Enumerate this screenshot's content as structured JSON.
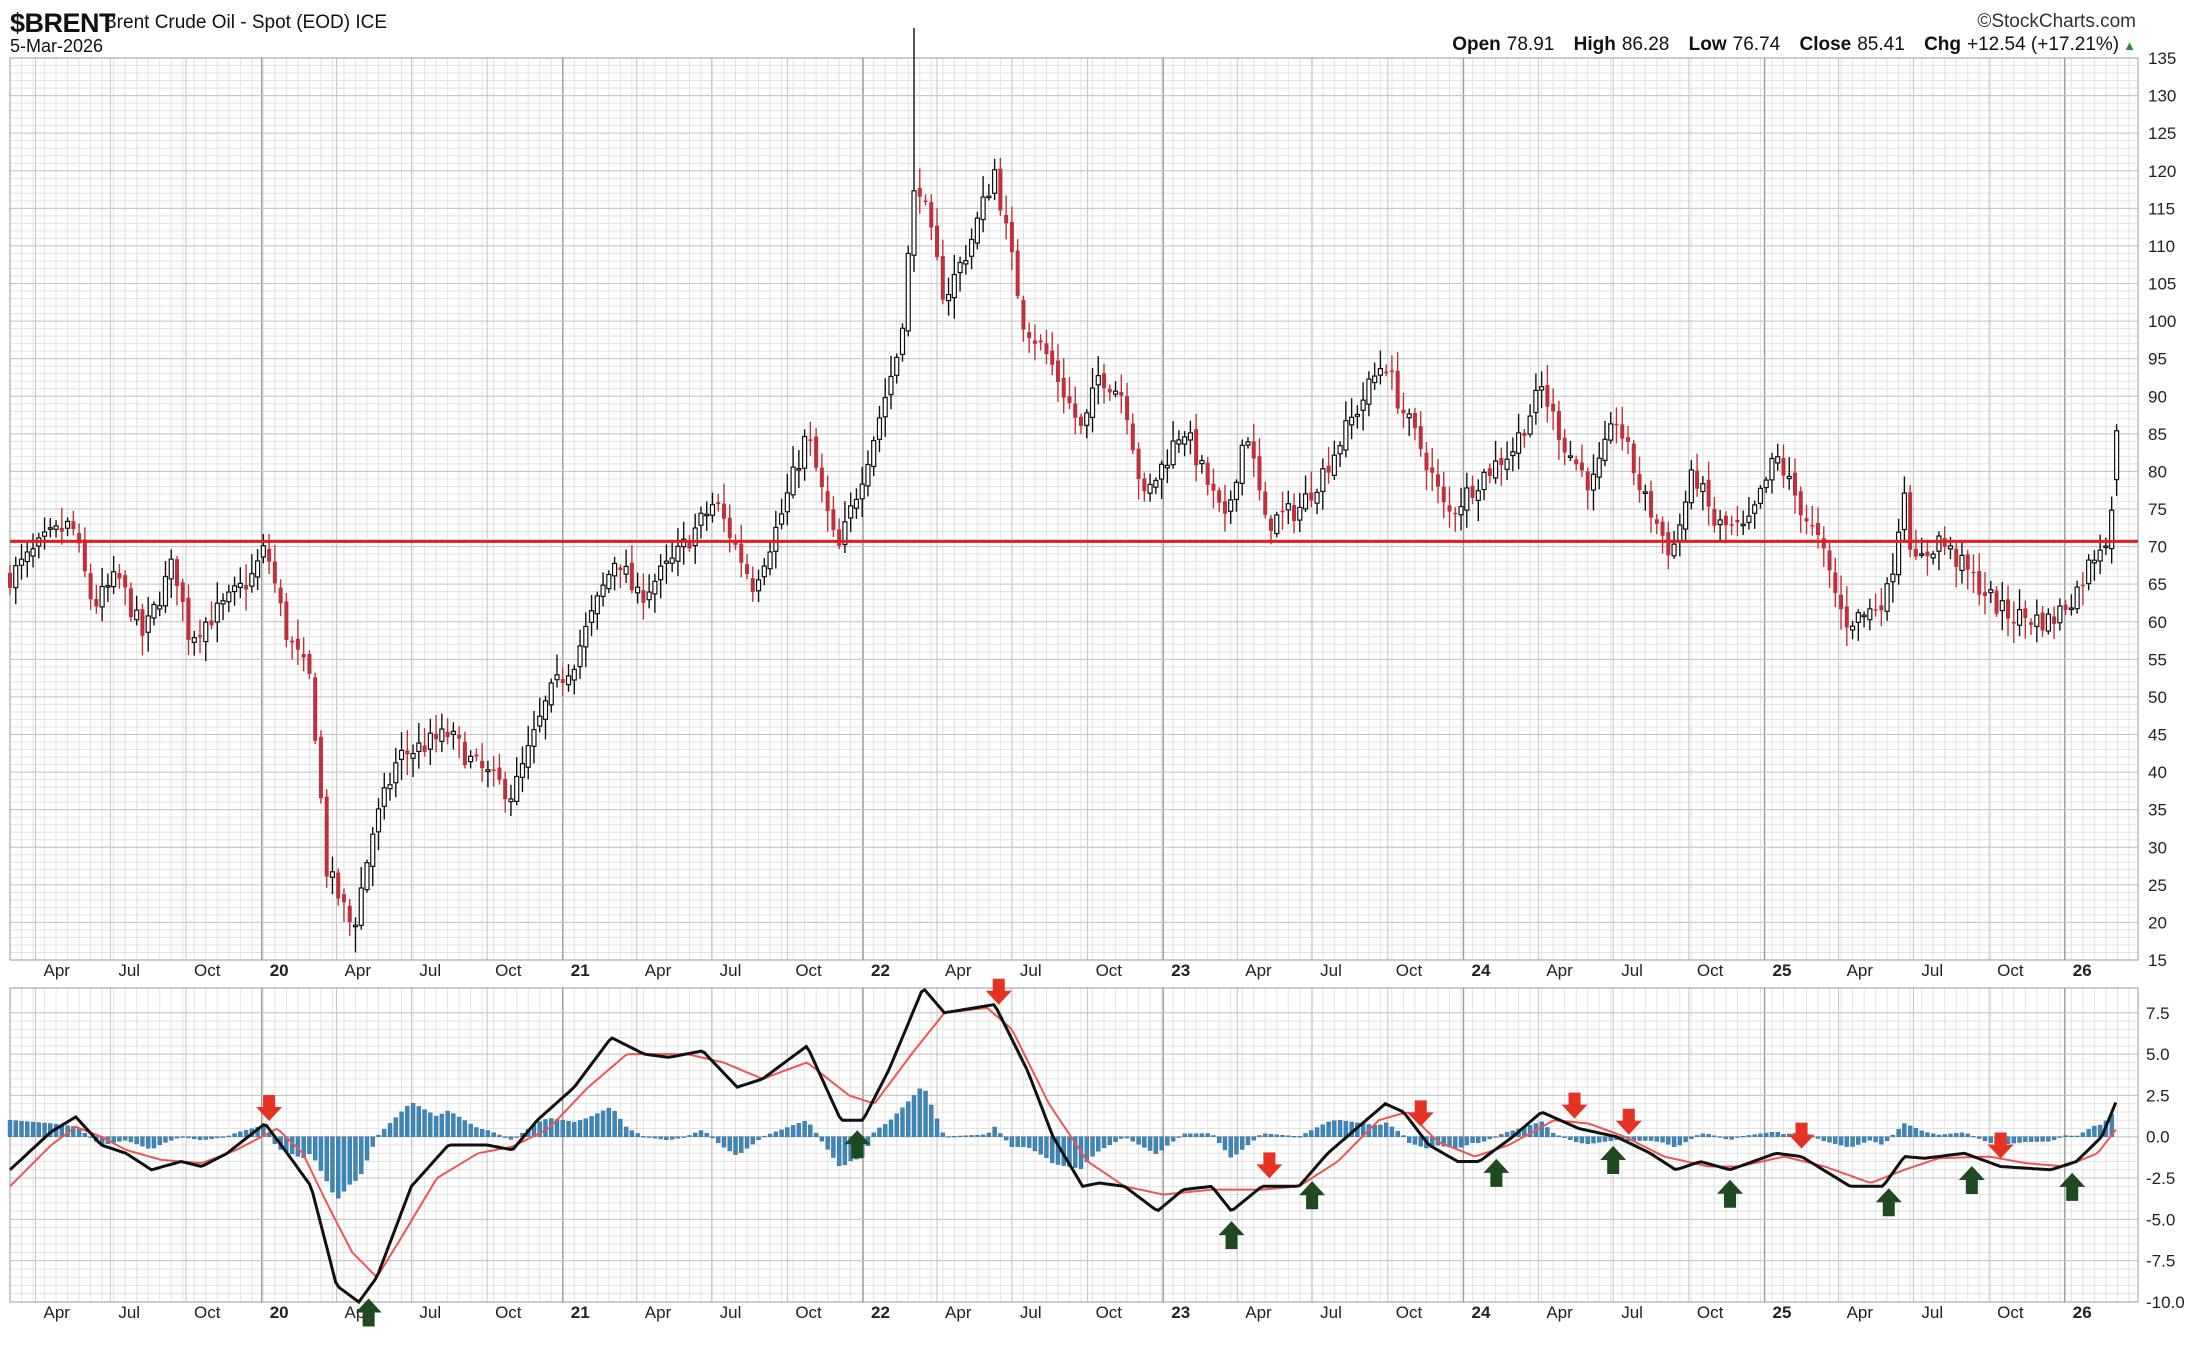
{
  "header": {
    "symbol": "$BRENT",
    "description": "Brent Crude Oil - Spot (EOD)",
    "exchange": "ICE",
    "date": "5-Mar-2026",
    "brand": "©StockCharts.com",
    "open_label": "Open",
    "open": "78.91",
    "high_label": "High",
    "high": "86.28",
    "low_label": "Low",
    "low": "76.74",
    "close_label": "Close",
    "close": "85.41",
    "chg_label": "Chg",
    "chg": "+12.54 (+17.21%)"
  },
  "colors": {
    "up": "#111111",
    "down": "#c0303a",
    "horizontal_line": "#e02020",
    "macd_line": "#111111",
    "signal_line": "#ee5555",
    "histogram": "#3f86b8",
    "sell_arrow": "#e53222",
    "buy_arrow": "#1f4a1f",
    "grid": "#d0d0d0"
  },
  "chart_data": [
    {
      "type": "candlestick",
      "title": "$BRENT Brent Crude Oil - Spot (EOD) ICE",
      "period": "weekly",
      "x_range": [
        "2019-03-01",
        "2026-03-31"
      ],
      "ylim": [
        15,
        135
      ],
      "y_ticks": [
        15,
        20,
        25,
        30,
        35,
        40,
        45,
        50,
        55,
        60,
        65,
        70,
        75,
        80,
        85,
        90,
        95,
        100,
        105,
        110,
        115,
        120,
        125,
        130,
        135
      ],
      "x_ticks": [
        {
          "date": "2019-04-01",
          "label": "Apr"
        },
        {
          "date": "2019-07-01",
          "label": "Jul"
        },
        {
          "date": "2019-10-01",
          "label": "Oct"
        },
        {
          "date": "2020-01-01",
          "label": "20"
        },
        {
          "date": "2020-04-01",
          "label": "Apr"
        },
        {
          "date": "2020-07-01",
          "label": "Jul"
        },
        {
          "date": "2020-10-01",
          "label": "Oct"
        },
        {
          "date": "2021-01-01",
          "label": "21"
        },
        {
          "date": "2021-04-01",
          "label": "Apr"
        },
        {
          "date": "2021-07-01",
          "label": "Jul"
        },
        {
          "date": "2021-10-01",
          "label": "Oct"
        },
        {
          "date": "2022-01-01",
          "label": "22"
        },
        {
          "date": "2022-04-01",
          "label": "Apr"
        },
        {
          "date": "2022-07-01",
          "label": "Jul"
        },
        {
          "date": "2022-10-01",
          "label": "Oct"
        },
        {
          "date": "2023-01-01",
          "label": "23"
        },
        {
          "date": "2023-04-01",
          "label": "Apr"
        },
        {
          "date": "2023-07-01",
          "label": "Jul"
        },
        {
          "date": "2023-10-01",
          "label": "Oct"
        },
        {
          "date": "2024-01-01",
          "label": "24"
        },
        {
          "date": "2024-04-01",
          "label": "Apr"
        },
        {
          "date": "2024-07-01",
          "label": "Jul"
        },
        {
          "date": "2024-10-01",
          "label": "Oct"
        },
        {
          "date": "2025-01-01",
          "label": "25"
        },
        {
          "date": "2025-04-01",
          "label": "Apr"
        },
        {
          "date": "2025-07-01",
          "label": "Jul"
        },
        {
          "date": "2025-10-01",
          "label": "Oct"
        },
        {
          "date": "2026-01-01",
          "label": "26"
        }
      ],
      "horizontal_line": 70.7,
      "price_path": [
        [
          "2019-03-01",
          66
        ],
        [
          "2019-04-15",
          71
        ],
        [
          "2019-05-15",
          73
        ],
        [
          "2019-06-10",
          62
        ],
        [
          "2019-07-10",
          66
        ],
        [
          "2019-08-10",
          58
        ],
        [
          "2019-09-16",
          68
        ],
        [
          "2019-10-05",
          58
        ],
        [
          "2019-11-15",
          62
        ],
        [
          "2019-12-20",
          66
        ],
        [
          "2020-01-06",
          70
        ],
        [
          "2020-02-01",
          58
        ],
        [
          "2020-03-01",
          52
        ],
        [
          "2020-03-20",
          27
        ],
        [
          "2020-04-21",
          19
        ],
        [
          "2020-05-15",
          32
        ],
        [
          "2020-06-15",
          42
        ],
        [
          "2020-08-15",
          45
        ],
        [
          "2020-09-15",
          41
        ],
        [
          "2020-11-01",
          37
        ],
        [
          "2020-12-15",
          50
        ],
        [
          "2021-01-15",
          55
        ],
        [
          "2021-03-08",
          69
        ],
        [
          "2021-04-01",
          63
        ],
        [
          "2021-05-15",
          68
        ],
        [
          "2021-07-05",
          76
        ],
        [
          "2021-08-20",
          65
        ],
        [
          "2021-09-20",
          73
        ],
        [
          "2021-10-25",
          85
        ],
        [
          "2021-12-01",
          69
        ],
        [
          "2022-01-15",
          85
        ],
        [
          "2022-02-15",
          97
        ],
        [
          "2022-03-07",
          120
        ],
        [
          "2022-04-10",
          103
        ],
        [
          "2022-05-10",
          110
        ],
        [
          "2022-06-10",
          120
        ],
        [
          "2022-07-15",
          100
        ],
        [
          "2022-08-15",
          95
        ],
        [
          "2022-09-25",
          85
        ],
        [
          "2022-10-15",
          93
        ],
        [
          "2022-11-15",
          90
        ],
        [
          "2022-12-08",
          76
        ],
        [
          "2023-01-25",
          86
        ],
        [
          "2023-03-17",
          73
        ],
        [
          "2023-04-12",
          86
        ],
        [
          "2023-05-05",
          73
        ],
        [
          "2023-06-15",
          75
        ],
        [
          "2023-07-15",
          80
        ],
        [
          "2023-09-27",
          95
        ],
        [
          "2023-10-15",
          89
        ],
        [
          "2023-11-15",
          82
        ],
        [
          "2023-12-12",
          74
        ],
        [
          "2024-01-20",
          79
        ],
        [
          "2024-03-01",
          83
        ],
        [
          "2024-04-05",
          91
        ],
        [
          "2024-05-05",
          83
        ],
        [
          "2024-06-05",
          78
        ],
        [
          "2024-07-05",
          87
        ],
        [
          "2024-08-05",
          77
        ],
        [
          "2024-09-10",
          69
        ],
        [
          "2024-10-07",
          80
        ],
        [
          "2024-11-01",
          73
        ],
        [
          "2024-12-10",
          72
        ],
        [
          "2025-01-15",
          82
        ],
        [
          "2025-02-15",
          75
        ],
        [
          "2025-03-10",
          70
        ],
        [
          "2025-04-08",
          60
        ],
        [
          "2025-05-05",
          61
        ],
        [
          "2025-06-01",
          64
        ],
        [
          "2025-06-20",
          78
        ],
        [
          "2025-07-01",
          67
        ],
        [
          "2025-08-01",
          71
        ],
        [
          "2025-09-01",
          67
        ],
        [
          "2025-10-20",
          61
        ],
        [
          "2025-12-15",
          60
        ],
        [
          "2026-01-15",
          64
        ],
        [
          "2026-02-10",
          70
        ],
        [
          "2026-02-25",
          72
        ],
        [
          "2026-03-05",
          85.41
        ]
      ],
      "last_candle": {
        "date": "2026-03-05",
        "open": 78.91,
        "high": 86.28,
        "low": 76.74,
        "close": 85.41
      },
      "notable_extremes": [
        {
          "date": "2020-04-21",
          "low": 16
        },
        {
          "date": "2022-03-07",
          "high": 139
        }
      ]
    },
    {
      "type": "macd",
      "ylim": [
        -10,
        9
      ],
      "y_ticks": [
        {
          "value": 7.5,
          "label": "7.5"
        },
        {
          "value": 5,
          "label": "5.0"
        },
        {
          "value": 2.5,
          "label": "2.5"
        },
        {
          "value": 0,
          "label": "0.0"
        },
        {
          "value": -2.5,
          "label": "-2.5"
        },
        {
          "value": -5,
          "label": "-5.0"
        },
        {
          "value": -7.5,
          "label": "-7.5"
        },
        {
          "value": -10,
          "label": "-10.0"
        }
      ],
      "x_ticks_same_as_price": true,
      "macd_line": [
        [
          "2019-03-01",
          -2
        ],
        [
          "2019-04-20",
          0.3
        ],
        [
          "2019-05-20",
          1.2
        ],
        [
          "2019-06-20",
          -0.5
        ],
        [
          "2019-07-20",
          -1
        ],
        [
          "2019-08-20",
          -2
        ],
        [
          "2019-09-25",
          -1.5
        ],
        [
          "2019-10-20",
          -1.8
        ],
        [
          "2019-11-20",
          -1
        ],
        [
          "2020-01-05",
          0.8
        ],
        [
          "2020-02-01",
          -1
        ],
        [
          "2020-03-01",
          -3
        ],
        [
          "2020-04-01",
          -9
        ],
        [
          "2020-04-28",
          -10
        ],
        [
          "2020-05-20",
          -8.5
        ],
        [
          "2020-07-01",
          -3
        ],
        [
          "2020-08-15",
          -0.5
        ],
        [
          "2020-10-01",
          -0.5
        ],
        [
          "2020-11-01",
          -0.8
        ],
        [
          "2020-12-01",
          1
        ],
        [
          "2021-01-15",
          3
        ],
        [
          "2021-03-01",
          6
        ],
        [
          "2021-04-10",
          5
        ],
        [
          "2021-05-10",
          4.8
        ],
        [
          "2021-06-20",
          5.2
        ],
        [
          "2021-08-01",
          3
        ],
        [
          "2021-09-01",
          3.5
        ],
        [
          "2021-10-25",
          5.5
        ],
        [
          "2021-12-05",
          1
        ],
        [
          "2022-01-01",
          1
        ],
        [
          "2022-02-01",
          4
        ],
        [
          "2022-03-15",
          9
        ],
        [
          "2022-04-10",
          7.5
        ],
        [
          "2022-06-10",
          8
        ],
        [
          "2022-07-20",
          4
        ],
        [
          "2022-08-20",
          0
        ],
        [
          "2022-09-25",
          -3
        ],
        [
          "2022-10-15",
          -2.8
        ],
        [
          "2022-11-15",
          -3
        ],
        [
          "2022-12-25",
          -4.5
        ],
        [
          "2023-01-25",
          -3.2
        ],
        [
          "2023-03-01",
          -3
        ],
        [
          "2023-03-25",
          -4.5
        ],
        [
          "2023-05-01",
          -3
        ],
        [
          "2023-06-15",
          -3
        ],
        [
          "2023-07-20",
          -1
        ],
        [
          "2023-09-28",
          2
        ],
        [
          "2023-10-20",
          1.5
        ],
        [
          "2023-11-20",
          -0.5
        ],
        [
          "2023-12-25",
          -1.5
        ],
        [
          "2024-01-20",
          -1.5
        ],
        [
          "2024-03-01",
          0
        ],
        [
          "2024-04-05",
          1.5
        ],
        [
          "2024-05-20",
          0.5
        ],
        [
          "2024-07-05",
          0
        ],
        [
          "2024-08-15",
          -1
        ],
        [
          "2024-09-15",
          -2
        ],
        [
          "2024-10-15",
          -1.5
        ],
        [
          "2024-11-20",
          -2
        ],
        [
          "2025-01-15",
          -1
        ],
        [
          "2025-02-15",
          -1.2
        ],
        [
          "2025-04-15",
          -3
        ],
        [
          "2025-05-25",
          -3
        ],
        [
          "2025-06-20",
          -1.2
        ],
        [
          "2025-07-15",
          -1.3
        ],
        [
          "2025-09-01",
          -1
        ],
        [
          "2025-10-15",
          -1.8
        ],
        [
          "2025-12-15",
          -2
        ],
        [
          "2026-01-15",
          -1.5
        ],
        [
          "2026-02-15",
          0
        ],
        [
          "2026-03-05",
          2.2
        ]
      ],
      "signal_line": [
        [
          "2019-03-01",
          -3
        ],
        [
          "2019-04-20",
          -0.5
        ],
        [
          "2019-05-20",
          0.6
        ],
        [
          "2019-06-20",
          0
        ],
        [
          "2019-07-20",
          -0.8
        ],
        [
          "2019-09-01",
          -1.4
        ],
        [
          "2019-10-20",
          -1.6
        ],
        [
          "2019-12-01",
          -0.8
        ],
        [
          "2020-01-20",
          0.5
        ],
        [
          "2020-02-20",
          -1
        ],
        [
          "2020-03-20",
          -4
        ],
        [
          "2020-04-20",
          -7
        ],
        [
          "2020-05-20",
          -8.5
        ],
        [
          "2020-06-20",
          -6
        ],
        [
          "2020-08-01",
          -2.5
        ],
        [
          "2020-09-20",
          -1
        ],
        [
          "2020-11-01",
          -0.6
        ],
        [
          "2020-12-15",
          0.5
        ],
        [
          "2021-02-01",
          3
        ],
        [
          "2021-03-20",
          5
        ],
        [
          "2021-06-01",
          5
        ],
        [
          "2021-07-15",
          4.5
        ],
        [
          "2021-09-01",
          3.5
        ],
        [
          "2021-10-25",
          4.5
        ],
        [
          "2021-12-15",
          2.5
        ],
        [
          "2022-01-15",
          2
        ],
        [
          "2022-03-01",
          5
        ],
        [
          "2022-04-10",
          7.5
        ],
        [
          "2022-06-01",
          7.8
        ],
        [
          "2022-07-01",
          6.5
        ],
        [
          "2022-08-15",
          2
        ],
        [
          "2022-10-01",
          -1.5
        ],
        [
          "2022-11-15",
          -3
        ],
        [
          "2023-01-01",
          -3.5
        ],
        [
          "2023-03-01",
          -3.2
        ],
        [
          "2023-05-01",
          -3.2
        ],
        [
          "2023-06-15",
          -3
        ],
        [
          "2023-08-01",
          -1.5
        ],
        [
          "2023-09-20",
          1
        ],
        [
          "2023-10-25",
          1.5
        ],
        [
          "2023-12-01",
          -0.3
        ],
        [
          "2024-01-15",
          -1.2
        ],
        [
          "2024-02-25",
          -0.5
        ],
        [
          "2024-04-20",
          1
        ],
        [
          "2024-06-01",
          0.8
        ],
        [
          "2024-07-15",
          0
        ],
        [
          "2024-09-01",
          -1.2
        ],
        [
          "2024-10-25",
          -1.8
        ],
        [
          "2024-12-01",
          -1.8
        ],
        [
          "2025-01-25",
          -1.2
        ],
        [
          "2025-03-15",
          -1.8
        ],
        [
          "2025-05-10",
          -2.8
        ],
        [
          "2025-06-20",
          -2
        ],
        [
          "2025-08-01",
          -1.3
        ],
        [
          "2025-10-01",
          -1.2
        ],
        [
          "2025-11-15",
          -1.6
        ],
        [
          "2026-01-01",
          -1.8
        ],
        [
          "2026-02-10",
          -1
        ],
        [
          "2026-03-05",
          0.5
        ]
      ],
      "signals": [
        {
          "date": "2020-01-10",
          "type": "sell"
        },
        {
          "date": "2020-05-10",
          "type": "buy"
        },
        {
          "date": "2021-12-25",
          "type": "buy"
        },
        {
          "date": "2022-06-15",
          "type": "sell"
        },
        {
          "date": "2023-03-25",
          "type": "buy"
        },
        {
          "date": "2023-05-10",
          "type": "sell"
        },
        {
          "date": "2023-07-01",
          "type": "buy"
        },
        {
          "date": "2023-11-10",
          "type": "sell"
        },
        {
          "date": "2024-02-10",
          "type": "buy"
        },
        {
          "date": "2024-05-15",
          "type": "sell"
        },
        {
          "date": "2024-07-01",
          "type": "buy"
        },
        {
          "date": "2024-07-20",
          "type": "sell"
        },
        {
          "date": "2024-11-20",
          "type": "buy"
        },
        {
          "date": "2025-02-15",
          "type": "sell"
        },
        {
          "date": "2025-06-01",
          "type": "buy"
        },
        {
          "date": "2025-09-10",
          "type": "buy"
        },
        {
          "date": "2025-10-15",
          "type": "sell"
        },
        {
          "date": "2026-01-10",
          "type": "buy"
        }
      ]
    }
  ]
}
